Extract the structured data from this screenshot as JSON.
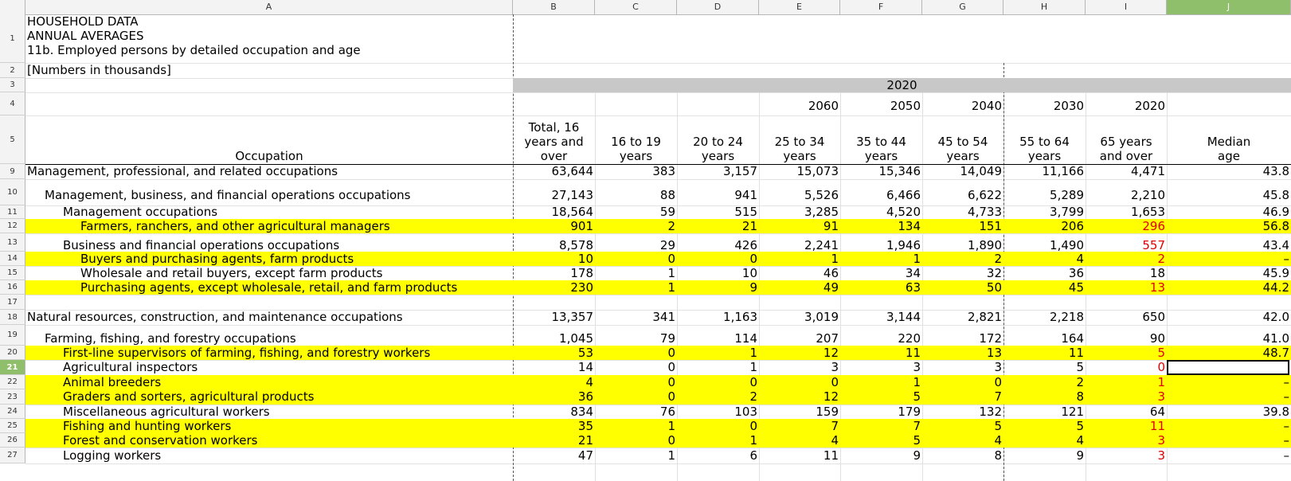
{
  "columns": [
    "A",
    "B",
    "C",
    "D",
    "E",
    "F",
    "G",
    "H",
    "I",
    "J"
  ],
  "selected_column": "J",
  "selected_row": "21",
  "title_lines": [
    "HOUSEHOLD DATA",
    "ANNUAL AVERAGES",
    "11b.  Employed persons by detailed occupation and age"
  ],
  "note": "[Numbers in thousands]",
  "year_band": "2020",
  "year_row": [
    "2060",
    "2050",
    "2040",
    "2030",
    "2020"
  ],
  "occupation_header": "Occupation",
  "col_headers": [
    "Total, 16\nyears and\nover",
    "16 to 19\nyears",
    "20 to 24\nyears",
    "25 to 34\nyears",
    "35 to 44\nyears",
    "45 to 54\nyears",
    "55 to 64\nyears",
    "65 years\nand over",
    "Median\nage"
  ],
  "row_numbers": [
    "1",
    "2",
    "3",
    "4",
    "5",
    "9",
    "10",
    "11",
    "12",
    "13",
    "14",
    "15",
    "16",
    "17",
    "18",
    "19",
    "20",
    "21",
    "22",
    "23",
    "24",
    "25",
    "26",
    "27"
  ],
  "rows": [
    {
      "num": "9",
      "label": "Management, professional, and related occupations",
      "indent": 0,
      "yellow": false,
      "vals": [
        "63,644",
        "383",
        "3,157",
        "15,073",
        "15,346",
        "14,049",
        "11,166",
        "4,471",
        "43.8"
      ]
    },
    {
      "num": "10",
      "label": "Management, business, and financial operations occupations",
      "indent": 1,
      "yellow": false,
      "vals": [
        "27,143",
        "88",
        "941",
        "5,526",
        "6,466",
        "6,622",
        "5,289",
        "2,210",
        "45.8"
      ]
    },
    {
      "num": "11",
      "label": "Management occupations",
      "indent": 2,
      "yellow": false,
      "vals": [
        "18,564",
        "59",
        "515",
        "3,285",
        "4,520",
        "4,733",
        "3,799",
        "1,653",
        "46.9"
      ]
    },
    {
      "num": "12",
      "label": "Farmers, ranchers, and other agricultural managers",
      "indent": 3,
      "yellow": true,
      "vals": [
        "901",
        "2",
        "21",
        "91",
        "134",
        "151",
        "206",
        "296",
        "56.8"
      ]
    },
    {
      "num": "13",
      "label": "Business and financial operations occupations",
      "indent": 2,
      "yellow": false,
      "vals": [
        "8,578",
        "29",
        "426",
        "2,241",
        "1,946",
        "1,890",
        "1,490",
        "557",
        "43.4"
      ]
    },
    {
      "num": "14",
      "label": "Buyers and purchasing agents, farm products",
      "indent": 3,
      "yellow": true,
      "vals": [
        "10",
        "0",
        "0",
        "1",
        "1",
        "2",
        "4",
        "2",
        "–"
      ]
    },
    {
      "num": "15",
      "label": "Wholesale and retail buyers, except farm products",
      "indent": 3,
      "yellow": false,
      "vals": [
        "178",
        "1",
        "10",
        "46",
        "34",
        "32",
        "36",
        "18",
        "45.9"
      ]
    },
    {
      "num": "16",
      "label": "Purchasing agents, except wholesale, retail, and farm products",
      "indent": 3,
      "yellow": true,
      "vals": [
        "230",
        "1",
        "9",
        "49",
        "63",
        "50",
        "45",
        "13",
        "44.2"
      ]
    },
    {
      "num": "17",
      "label": "",
      "indent": 0,
      "yellow": false,
      "vals": [
        "",
        "",
        "",
        "",
        "",
        "",
        "",
        "",
        ""
      ]
    },
    {
      "num": "18",
      "label": "Natural resources, construction, and maintenance occupations",
      "indent": 0,
      "yellow": false,
      "vals": [
        "13,357",
        "341",
        "1,163",
        "3,019",
        "3,144",
        "2,821",
        "2,218",
        "650",
        "42.0"
      ]
    },
    {
      "num": "19",
      "label": "Farming, fishing, and forestry occupations",
      "indent": 1,
      "yellow": false,
      "vals": [
        "1,045",
        "79",
        "114",
        "207",
        "220",
        "172",
        "164",
        "90",
        "41.0"
      ]
    },
    {
      "num": "20",
      "label": "First-line supervisors of farming, fishing, and forestry workers",
      "indent": 2,
      "yellow": true,
      "vals": [
        "53",
        "0",
        "1",
        "12",
        "11",
        "13",
        "11",
        "5",
        "48.7"
      ]
    },
    {
      "num": "21",
      "label": "Agricultural inspectors",
      "indent": 2,
      "yellow": false,
      "vals": [
        "14",
        "0",
        "1",
        "3",
        "3",
        "3",
        "5",
        "0",
        ""
      ]
    },
    {
      "num": "22",
      "label": "Animal breeders",
      "indent": 2,
      "yellow": true,
      "vals": [
        "4",
        "0",
        "0",
        "0",
        "1",
        "0",
        "2",
        "1",
        "–"
      ]
    },
    {
      "num": "23",
      "label": "Graders and sorters, agricultural products",
      "indent": 2,
      "yellow": true,
      "vals": [
        "36",
        "0",
        "2",
        "12",
        "5",
        "7",
        "8",
        "3",
        "–"
      ]
    },
    {
      "num": "24",
      "label": "Miscellaneous agricultural workers",
      "indent": 2,
      "yellow": false,
      "vals": [
        "834",
        "76",
        "103",
        "159",
        "179",
        "132",
        "121",
        "64",
        "39.8"
      ]
    },
    {
      "num": "25",
      "label": "Fishing and hunting workers",
      "indent": 2,
      "yellow": true,
      "vals": [
        "35",
        "1",
        "0",
        "7",
        "7",
        "5",
        "5",
        "11",
        "–"
      ]
    },
    {
      "num": "26",
      "label": "Forest and conservation workers",
      "indent": 2,
      "yellow": true,
      "vals": [
        "21",
        "0",
        "1",
        "4",
        "5",
        "4",
        "4",
        "3",
        "–"
      ]
    },
    {
      "num": "27",
      "label": "Logging workers",
      "indent": 2,
      "yellow": false,
      "vals": [
        "47",
        "1",
        "6",
        "11",
        "9",
        "8",
        "9",
        "3",
        "–"
      ]
    }
  ],
  "colors": {
    "highlight": "#ffff00",
    "red_text": "#e00000",
    "year_band": "#c8c8c8",
    "selected_header": "#8fbf6a"
  }
}
